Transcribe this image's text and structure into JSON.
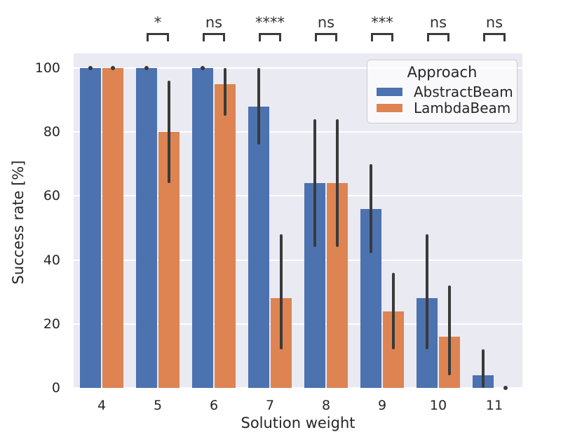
{
  "chart_data": {
    "type": "bar",
    "title": "",
    "xlabel": "Solution weight",
    "ylabel": "Success rate [%]",
    "legend_title": "Approach",
    "legend_position": "upper right",
    "grid": true,
    "categories": [
      "4",
      "5",
      "6",
      "7",
      "8",
      "9",
      "10",
      "11"
    ],
    "yticks": [
      0,
      20,
      40,
      60,
      80,
      100
    ],
    "ylim": [
      0,
      104.6
    ],
    "series": [
      {
        "name": "AbstractBeam",
        "color": "#4c72b0",
        "values": [
          100,
          100,
          100,
          88,
          64,
          56,
          28,
          4
        ],
        "ci_low": [
          100,
          100,
          100,
          76,
          44,
          42,
          12,
          0
        ],
        "ci_high": [
          100,
          100,
          100,
          100,
          84,
          70,
          48,
          12
        ]
      },
      {
        "name": "LambdaBeam",
        "color": "#dd8452",
        "values": [
          100,
          80,
          95,
          28,
          64,
          24,
          16,
          0
        ],
        "ci_low": [
          100,
          64,
          85,
          12,
          44,
          12,
          4,
          0
        ],
        "ci_high": [
          100,
          96,
          100,
          48,
          84,
          36,
          32,
          0
        ]
      }
    ],
    "significance": [
      {
        "category": "5",
        "label": "*"
      },
      {
        "category": "6",
        "label": "ns"
      },
      {
        "category": "7",
        "label": "****"
      },
      {
        "category": "8",
        "label": "ns"
      },
      {
        "category": "9",
        "label": "***"
      },
      {
        "category": "10",
        "label": "ns"
      },
      {
        "category": "11",
        "label": "ns"
      }
    ],
    "colors": {
      "plot_bg": "#eaeaf2",
      "grid": "#ffffff",
      "errorbar": "#3a3a3a",
      "bracket": "#3b3b3b",
      "text": "#262626",
      "legend_border": "#cccccc"
    }
  }
}
